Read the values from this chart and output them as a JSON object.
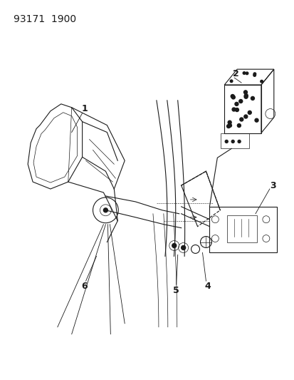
{
  "title_code": "93171  1900",
  "background_color": "#ffffff",
  "line_color": "#1a1a1a",
  "label_color": "#000000",
  "figsize": [
    4.14,
    5.33
  ],
  "dpi": 100,
  "title_fontsize": 10,
  "label_fontsize": 9
}
